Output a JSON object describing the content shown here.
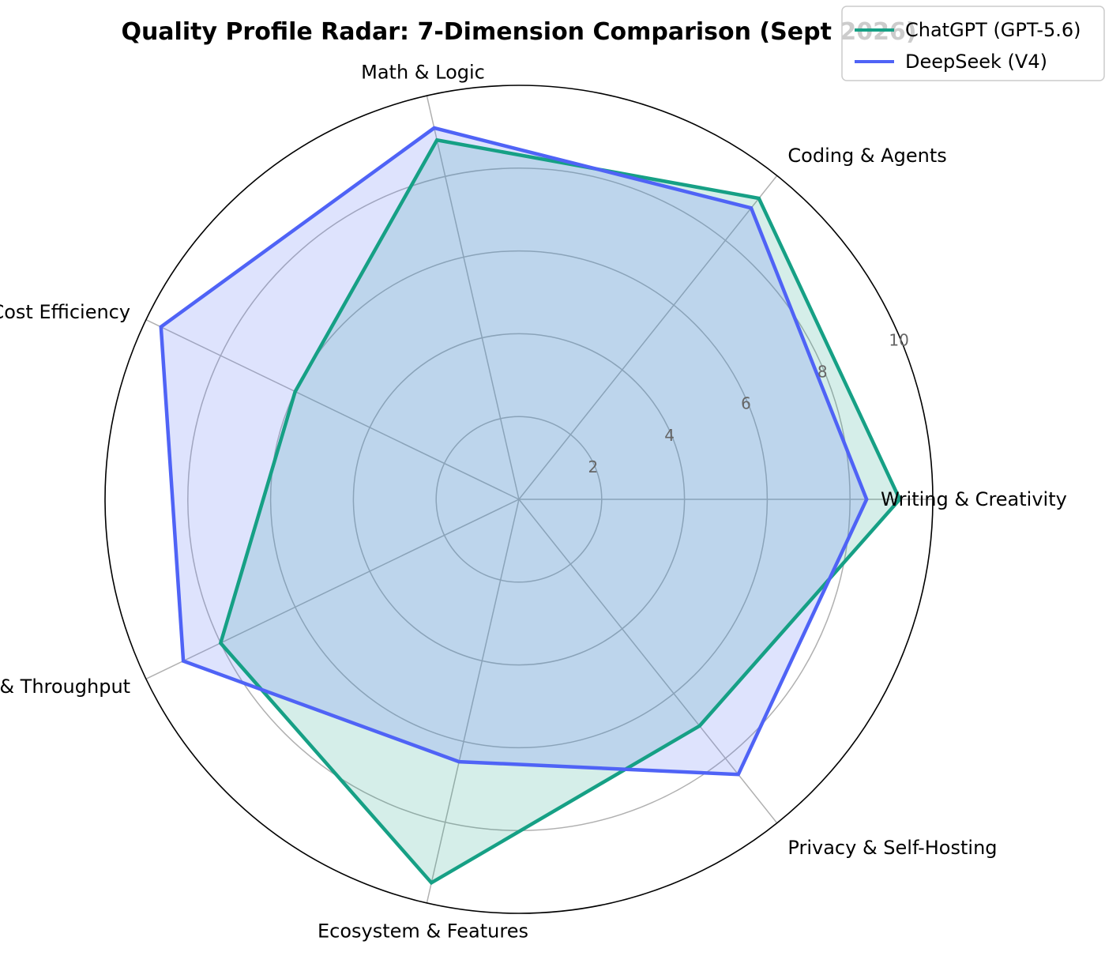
{
  "chart_data": {
    "type": "radar",
    "title": "Quality Profile Radar: 7-Dimension Comparison (Sept 2026)",
    "axes": [
      "Writing & Creativity",
      "Coding & Agents",
      "Math & Logic",
      "Cost Efficiency",
      "Speed & Throughput",
      "Ecosystem & Features",
      "Privacy & Self-Hosting"
    ],
    "rlim": [
      0,
      10
    ],
    "rticks": [
      2,
      4,
      6,
      8,
      10
    ],
    "rtick_labels": [
      "2",
      "4",
      "6",
      "8",
      "10"
    ],
    "grid": true,
    "legend_position": "top-right",
    "series": [
      {
        "name": "ChatGPT (GPT-5.6)",
        "color": "#16a085",
        "values": [
          9.2,
          9.3,
          8.9,
          6.0,
          8.0,
          9.5,
          7.0
        ]
      },
      {
        "name": "DeepSeek (V4)",
        "color": "#4f63f6",
        "values": [
          8.4,
          9.0,
          9.2,
          9.6,
          9.0,
          6.5,
          8.5
        ]
      }
    ]
  }
}
